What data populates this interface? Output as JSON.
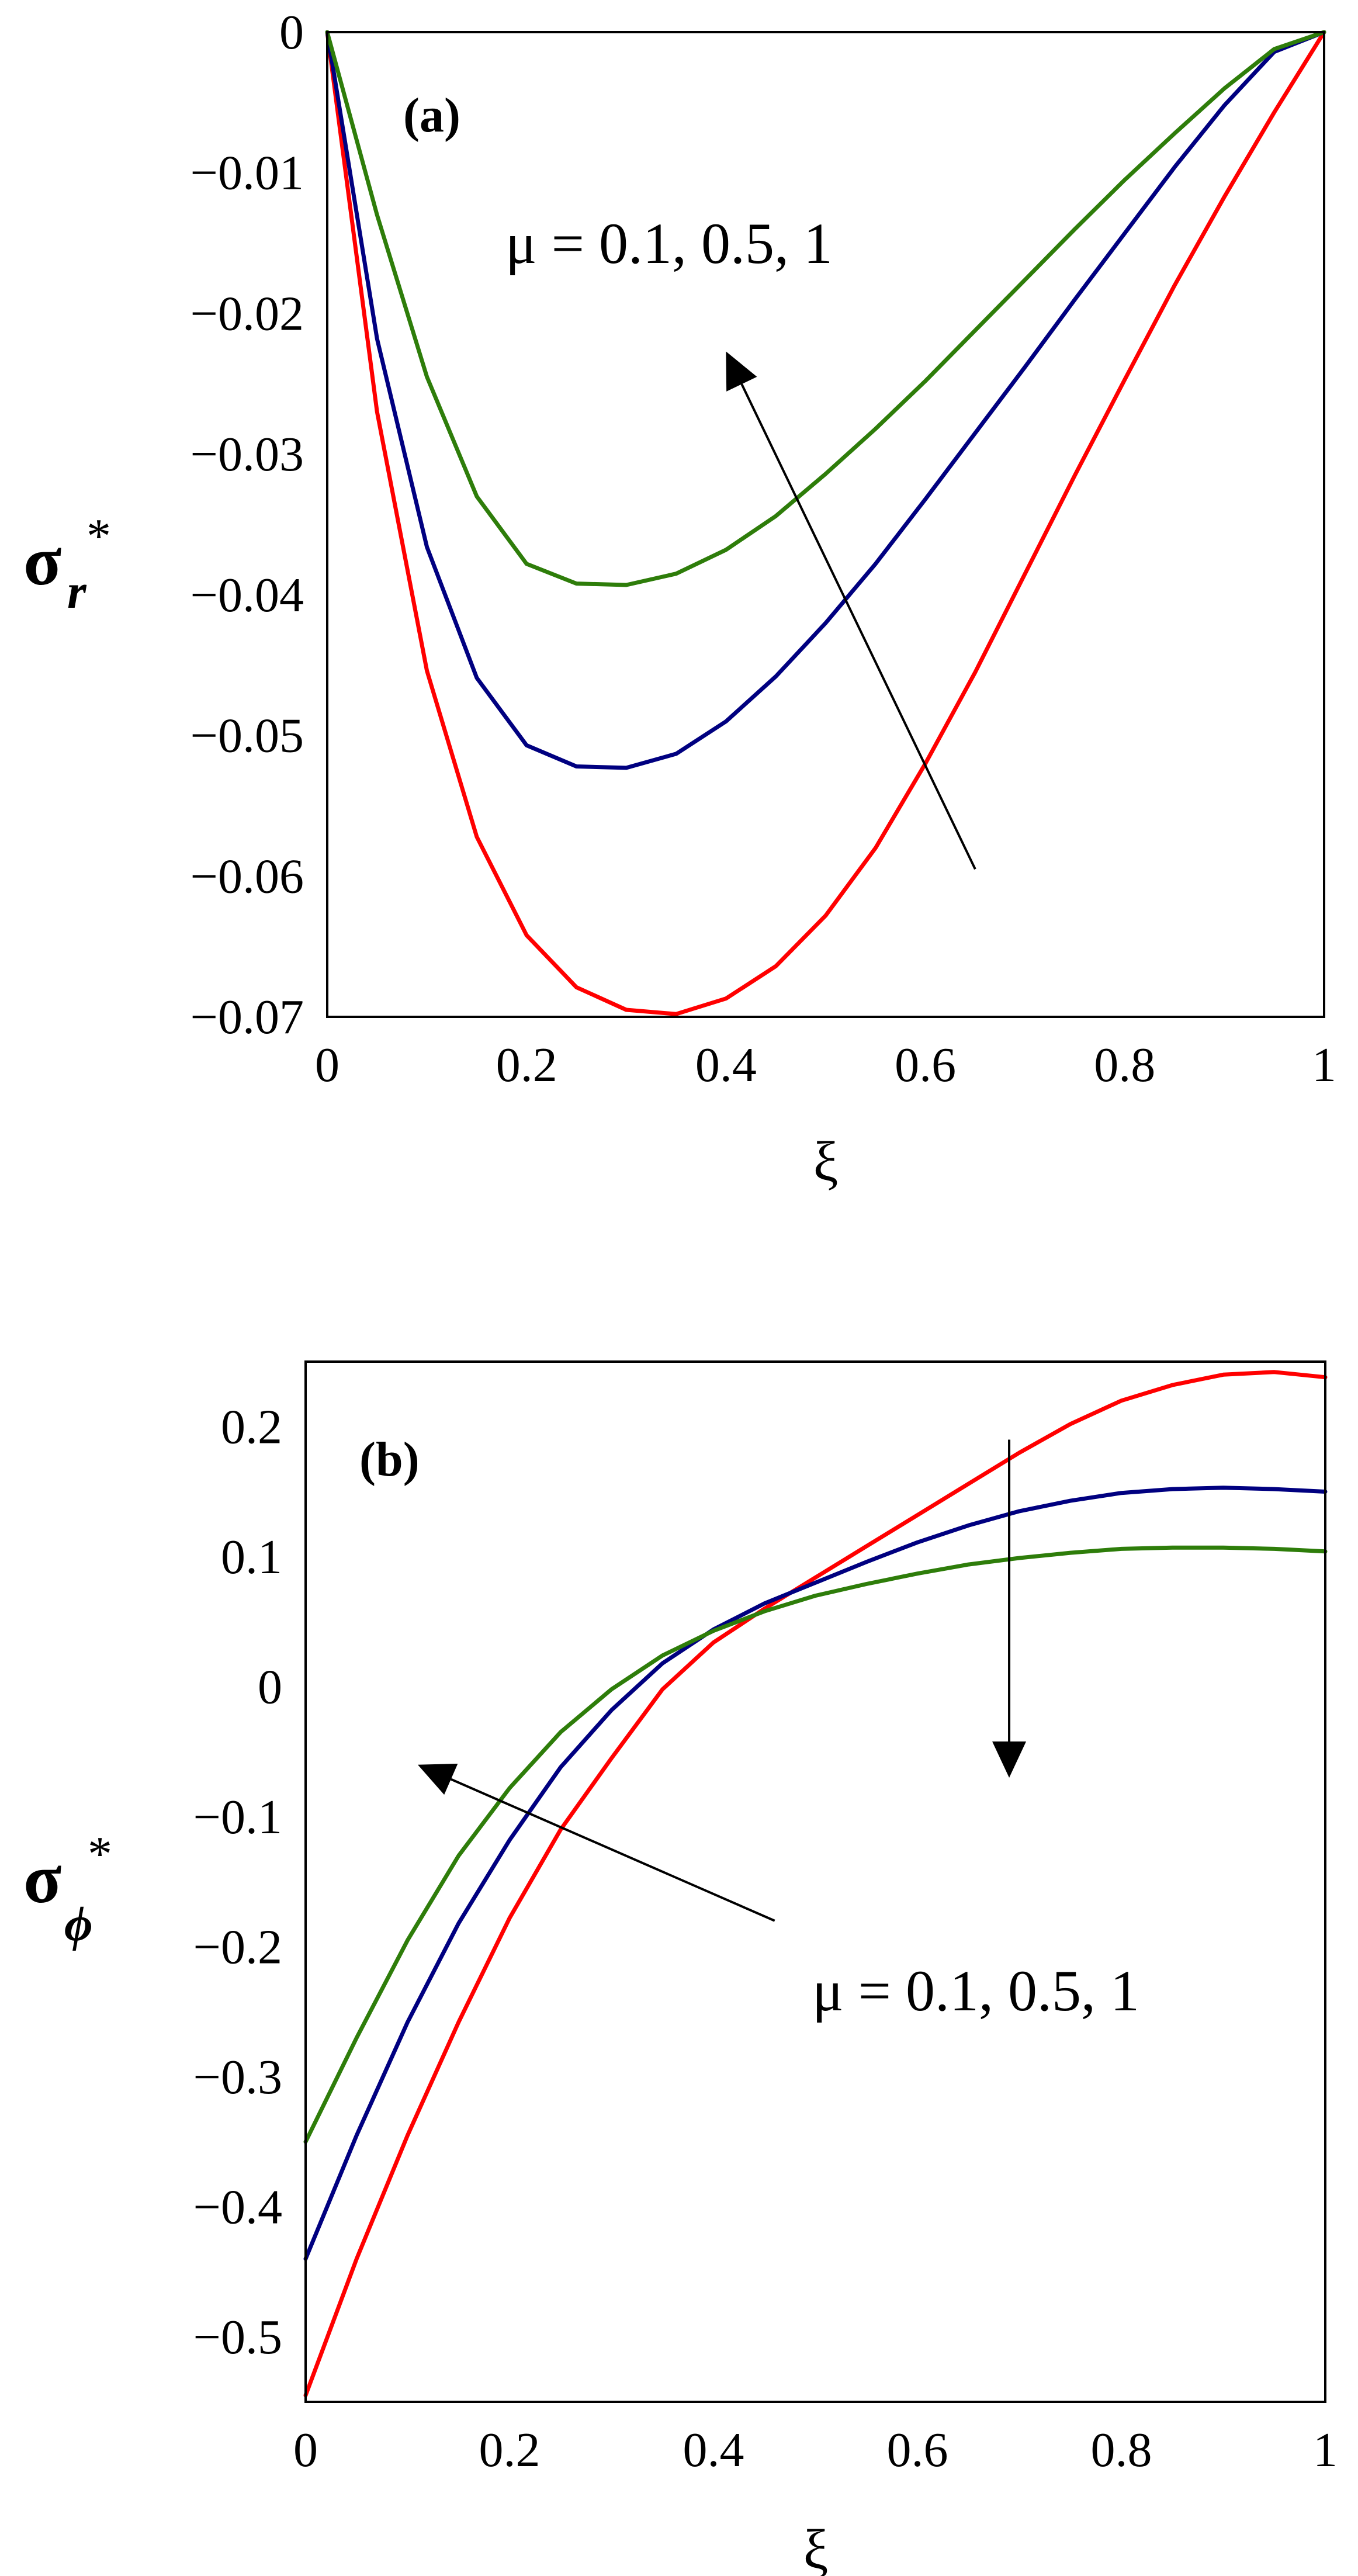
{
  "chart_data": [
    {
      "type": "line",
      "panel_label": "(a)",
      "xlabel": "ξ",
      "ylabel": "σ",
      "ylabel_subscript": "r",
      "ylabel_superscript": "*",
      "xlim": [
        0,
        1
      ],
      "ylim": [
        -0.07,
        0
      ],
      "xticks": [
        0,
        0.2,
        0.4,
        0.6,
        0.8,
        1
      ],
      "xtick_labels": [
        "0",
        "0.2",
        "0.4",
        "0.6",
        "0.8",
        "1"
      ],
      "yticks": [
        0,
        -0.01,
        -0.02,
        -0.03,
        -0.04,
        -0.05,
        -0.06,
        -0.07
      ],
      "ytick_labels": [
        "0",
        "−0.01",
        "−0.02",
        "−0.03",
        "−0.04",
        "−0.05",
        "−0.06",
        "−0.07"
      ],
      "annotation": "μ = 0.1, 0.5, 1",
      "arrows": [
        {
          "from": [
            0.65,
            -0.0595
          ],
          "to": [
            0.4,
            -0.0227
          ]
        }
      ],
      "series": [
        {
          "name": "μ = 0.1",
          "color": "#ff0000",
          "x": [
            0,
            0.05,
            0.1,
            0.15,
            0.2,
            0.25,
            0.3,
            0.35,
            0.4,
            0.45,
            0.5,
            0.55,
            0.6,
            0.65,
            0.7,
            0.75,
            0.8,
            0.85,
            0.9,
            0.95,
            1
          ],
          "y": [
            0,
            -0.027,
            -0.0454,
            -0.0572,
            -0.0642,
            -0.0679,
            -0.0695,
            -0.0698,
            -0.0687,
            -0.0664,
            -0.0628,
            -0.058,
            -0.052,
            -0.0455,
            -0.0385,
            -0.0315,
            -0.0247,
            -0.018,
            -0.0117,
            -0.0057,
            0
          ]
        },
        {
          "name": "μ = 0.5",
          "color": "#000080",
          "x": [
            0,
            0.05,
            0.1,
            0.15,
            0.2,
            0.25,
            0.3,
            0.35,
            0.4,
            0.45,
            0.5,
            0.55,
            0.6,
            0.65,
            0.7,
            0.75,
            0.8,
            0.85,
            0.9,
            0.95,
            1
          ],
          "y": [
            0,
            -0.0218,
            -0.0366,
            -0.0459,
            -0.0507,
            -0.0522,
            -0.0523,
            -0.0513,
            -0.049,
            -0.0458,
            -0.042,
            -0.0378,
            -0.0332,
            -0.0285,
            -0.0238,
            -0.019,
            -0.0143,
            -0.0096,
            -0.0052,
            -0.0014,
            0
          ]
        },
        {
          "name": "μ = 1",
          "color": "#2e7d0a",
          "x": [
            0,
            0.05,
            0.1,
            0.15,
            0.2,
            0.25,
            0.3,
            0.35,
            0.4,
            0.45,
            0.5,
            0.55,
            0.6,
            0.65,
            0.7,
            0.75,
            0.8,
            0.85,
            0.9,
            0.95,
            1
          ],
          "y": [
            0,
            -0.013,
            -0.0245,
            -0.033,
            -0.0378,
            -0.0392,
            -0.0393,
            -0.0385,
            -0.0368,
            -0.0344,
            -0.0314,
            -0.0282,
            -0.0248,
            -0.0212,
            -0.0176,
            -0.014,
            -0.0105,
            -0.0072,
            -0.004,
            -0.0012,
            0
          ]
        }
      ]
    },
    {
      "type": "line",
      "panel_label": "(b)",
      "xlabel": "ξ",
      "ylabel": "σ",
      "ylabel_subscript": "ϕ",
      "ylabel_superscript": "*",
      "xlim": [
        0,
        1
      ],
      "ylim": [
        -0.55,
        0.25
      ],
      "xticks": [
        0,
        0.2,
        0.4,
        0.6,
        0.8,
        1
      ],
      "xtick_labels": [
        "0",
        "0.2",
        "0.4",
        "0.6",
        "0.8",
        "1"
      ],
      "yticks": [
        0.2,
        0.1,
        0,
        -0.1,
        -0.2,
        -0.3,
        -0.4,
        -0.5
      ],
      "ytick_labels": [
        "0.2",
        "0.1",
        "0",
        "−0.1",
        "−0.2",
        "−0.3",
        "−0.4",
        "−0.5"
      ],
      "annotation": "μ = 0.1, 0.5, 1",
      "arrows": [
        {
          "from": [
            0.46,
            -0.18
          ],
          "to": [
            0.11,
            -0.06
          ]
        },
        {
          "from": [
            0.69,
            0.19
          ],
          "to": [
            0.69,
            -0.07
          ]
        }
      ],
      "series": [
        {
          "name": "μ = 0.1",
          "color": "#ff0000",
          "x": [
            0,
            0.05,
            0.1,
            0.15,
            0.2,
            0.25,
            0.3,
            0.35,
            0.4,
            0.45,
            0.5,
            0.55,
            0.6,
            0.65,
            0.7,
            0.75,
            0.8,
            0.85,
            0.9,
            0.95,
            1
          ],
          "y": [
            -0.545,
            -0.44,
            -0.345,
            -0.258,
            -0.178,
            -0.11,
            -0.055,
            -0.002,
            0.034,
            0.06,
            0.084,
            0.108,
            0.132,
            0.156,
            0.18,
            0.202,
            0.22,
            0.232,
            0.24,
            0.242,
            0.238
          ]
        },
        {
          "name": "μ = 0.5",
          "color": "#000080",
          "x": [
            0,
            0.05,
            0.1,
            0.15,
            0.2,
            0.25,
            0.3,
            0.35,
            0.4,
            0.45,
            0.5,
            0.55,
            0.6,
            0.65,
            0.7,
            0.75,
            0.8,
            0.85,
            0.9,
            0.95,
            1
          ],
          "y": [
            -0.44,
            -0.345,
            -0.258,
            -0.182,
            -0.118,
            -0.062,
            -0.018,
            0.018,
            0.044,
            0.064,
            0.08,
            0.096,
            0.111,
            0.124,
            0.135,
            0.143,
            0.149,
            0.152,
            0.153,
            0.152,
            0.15
          ]
        },
        {
          "name": "μ = 1",
          "color": "#2e7d0a",
          "x": [
            0,
            0.05,
            0.1,
            0.15,
            0.2,
            0.25,
            0.3,
            0.35,
            0.4,
            0.45,
            0.5,
            0.55,
            0.6,
            0.65,
            0.7,
            0.75,
            0.8,
            0.85,
            0.9,
            0.95,
            1
          ],
          "y": [
            -0.35,
            -0.27,
            -0.195,
            -0.13,
            -0.078,
            -0.035,
            -0.002,
            0.024,
            0.043,
            0.058,
            0.07,
            0.079,
            0.087,
            0.094,
            0.099,
            0.103,
            0.106,
            0.107,
            0.107,
            0.106,
            0.104
          ]
        }
      ]
    }
  ]
}
